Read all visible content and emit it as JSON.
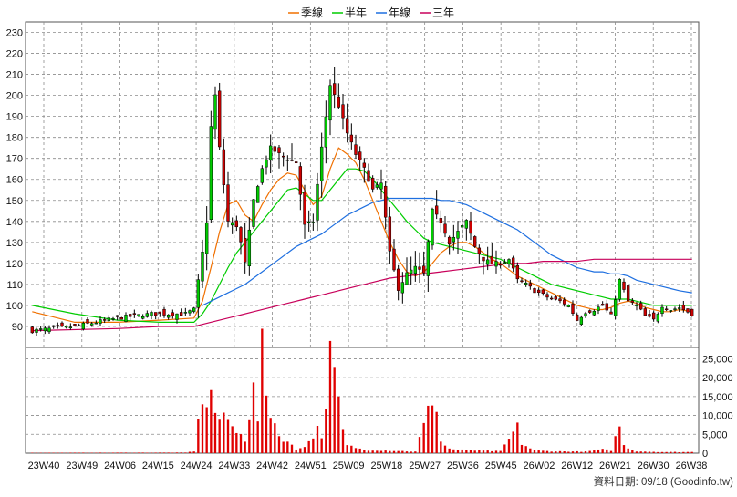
{
  "legend": [
    {
      "name": "季線",
      "color": "#f07000"
    },
    {
      "name": "半年",
      "color": "#00cc00"
    },
    {
      "name": "年線",
      "color": "#1e6fe0"
    },
    {
      "name": "三年",
      "color": "#c8005a"
    }
  ],
  "footer": "資料日期: 09/18  (Goodinfo.tw)",
  "colors": {
    "up": "#00cc00",
    "down": "#cc0000",
    "wick": "#000000",
    "volume": "#e00000",
    "grid": "#8c8c8c"
  },
  "chart_data": {
    "type": "candlestick",
    "x_ticks": [
      "23W40",
      "23W49",
      "24W06",
      "24W15",
      "24W24",
      "24W33",
      "24W42",
      "24W51",
      "25W09",
      "25W18",
      "25W27",
      "25W36",
      "25W45",
      "26W02",
      "26W12",
      "26W21",
      "26W30",
      "26W38"
    ],
    "price_axis": {
      "ticks": [
        90,
        100,
        110,
        120,
        130,
        140,
        150,
        160,
        170,
        180,
        190,
        200,
        210,
        220,
        230
      ],
      "ylim": [
        80,
        235
      ]
    },
    "volume_axis": {
      "ticks": [
        "0",
        "5,000",
        "10,000",
        "15,000",
        "20,000",
        "25,000"
      ],
      "ylim": [
        0,
        28000
      ]
    },
    "weeks": 156,
    "price_waypoints": [
      [
        0,
        88
      ],
      [
        10,
        90
      ],
      [
        20,
        94
      ],
      [
        28,
        96
      ],
      [
        36,
        96
      ],
      [
        38,
        98
      ],
      [
        40,
        125
      ],
      [
        41,
        140
      ],
      [
        42,
        185
      ],
      [
        43,
        200
      ],
      [
        44,
        175
      ],
      [
        46,
        140
      ],
      [
        48,
        138
      ],
      [
        49,
        130
      ],
      [
        50,
        120
      ],
      [
        52,
        150
      ],
      [
        54,
        165
      ],
      [
        56,
        175
      ],
      [
        58,
        172
      ],
      [
        60,
        170
      ],
      [
        62,
        168
      ],
      [
        64,
        138
      ],
      [
        66,
        140
      ],
      [
        68,
        175
      ],
      [
        70,
        205
      ],
      [
        72,
        195
      ],
      [
        74,
        182
      ],
      [
        76,
        172
      ],
      [
        78,
        165
      ],
      [
        80,
        155
      ],
      [
        82,
        158
      ],
      [
        84,
        125
      ],
      [
        86,
        108
      ],
      [
        88,
        115
      ],
      [
        90,
        118
      ],
      [
        92,
        115
      ],
      [
        94,
        145
      ],
      [
        96,
        140
      ],
      [
        98,
        130
      ],
      [
        100,
        135
      ],
      [
        102,
        140
      ],
      [
        104,
        128
      ],
      [
        106,
        122
      ],
      [
        108,
        120
      ],
      [
        110,
        120
      ],
      [
        112,
        122
      ],
      [
        114,
        112
      ],
      [
        116,
        110
      ],
      [
        118,
        107
      ],
      [
        120,
        105
      ],
      [
        122,
        103
      ],
      [
        124,
        102
      ],
      [
        126,
        100
      ],
      [
        128,
        93
      ],
      [
        130,
        97
      ],
      [
        132,
        98
      ],
      [
        134,
        100
      ],
      [
        136,
        95
      ],
      [
        138,
        112
      ],
      [
        140,
        102
      ],
      [
        142,
        100
      ],
      [
        144,
        95
      ],
      [
        146,
        93
      ],
      [
        148,
        100
      ],
      [
        150,
        98
      ],
      [
        152,
        99
      ],
      [
        155,
        96
      ]
    ],
    "volume_waypoints": [
      [
        0,
        100
      ],
      [
        36,
        150
      ],
      [
        38,
        500
      ],
      [
        40,
        15000
      ],
      [
        41,
        13000
      ],
      [
        42,
        15500
      ],
      [
        43,
        11000
      ],
      [
        44,
        9000
      ],
      [
        46,
        9000
      ],
      [
        48,
        5000
      ],
      [
        49,
        6000
      ],
      [
        50,
        3500
      ],
      [
        52,
        16500
      ],
      [
        53,
        9000
      ],
      [
        54,
        27500
      ],
      [
        55,
        15000
      ],
      [
        56,
        11000
      ],
      [
        57,
        8000
      ],
      [
        58,
        4500
      ],
      [
        60,
        3000
      ],
      [
        62,
        1000
      ],
      [
        64,
        2000
      ],
      [
        66,
        4000
      ],
      [
        67,
        8500
      ],
      [
        68,
        3500
      ],
      [
        70,
        25500
      ],
      [
        71,
        21000
      ],
      [
        72,
        13000
      ],
      [
        73,
        6000
      ],
      [
        74,
        2000
      ],
      [
        76,
        1500
      ],
      [
        78,
        800
      ],
      [
        80,
        800
      ],
      [
        86,
        600
      ],
      [
        90,
        400
      ],
      [
        94,
        14500
      ],
      [
        95,
        12000
      ],
      [
        96,
        3000
      ],
      [
        98,
        1200
      ],
      [
        100,
        900
      ],
      [
        104,
        700
      ],
      [
        110,
        500
      ],
      [
        114,
        7000
      ],
      [
        115,
        2500
      ],
      [
        118,
        700
      ],
      [
        122,
        500
      ],
      [
        130,
        400
      ],
      [
        134,
        1000
      ],
      [
        136,
        700
      ],
      [
        138,
        7500
      ],
      [
        139,
        2000
      ],
      [
        142,
        500
      ],
      [
        148,
        300
      ],
      [
        155,
        300
      ]
    ],
    "ma_waypoints": {
      "季線": [
        [
          0,
          97
        ],
        [
          10,
          92
        ],
        [
          20,
          92
        ],
        [
          30,
          93
        ],
        [
          38,
          94
        ],
        [
          40,
          102
        ],
        [
          42,
          118
        ],
        [
          44,
          135
        ],
        [
          46,
          148
        ],
        [
          48,
          150
        ],
        [
          50,
          143
        ],
        [
          52,
          140
        ],
        [
          54,
          148
        ],
        [
          56,
          155
        ],
        [
          58,
          160
        ],
        [
          60,
          163
        ],
        [
          62,
          162
        ],
        [
          64,
          155
        ],
        [
          66,
          148
        ],
        [
          68,
          152
        ],
        [
          70,
          165
        ],
        [
          72,
          175
        ],
        [
          74,
          172
        ],
        [
          76,
          168
        ],
        [
          78,
          160
        ],
        [
          80,
          150
        ],
        [
          82,
          140
        ],
        [
          84,
          130
        ],
        [
          86,
          122
        ],
        [
          88,
          116
        ],
        [
          90,
          114
        ],
        [
          92,
          116
        ],
        [
          94,
          120
        ],
        [
          96,
          125
        ],
        [
          98,
          128
        ],
        [
          100,
          130
        ],
        [
          102,
          130
        ],
        [
          104,
          128
        ],
        [
          106,
          125
        ],
        [
          108,
          122
        ],
        [
          110,
          120
        ],
        [
          112,
          117
        ],
        [
          114,
          114
        ],
        [
          116,
          112
        ],
        [
          118,
          110
        ],
        [
          120,
          108
        ],
        [
          122,
          106
        ],
        [
          124,
          104
        ],
        [
          126,
          102
        ],
        [
          128,
          100
        ],
        [
          130,
          99
        ],
        [
          132,
          98
        ],
        [
          134,
          98
        ],
        [
          136,
          99
        ],
        [
          138,
          101
        ],
        [
          140,
          102
        ],
        [
          142,
          101
        ],
        [
          144,
          99
        ],
        [
          146,
          98
        ],
        [
          148,
          97
        ],
        [
          150,
          97
        ],
        [
          152,
          98
        ],
        [
          155,
          97
        ]
      ],
      "半年": [
        [
          0,
          100
        ],
        [
          10,
          96
        ],
        [
          20,
          93
        ],
        [
          30,
          92
        ],
        [
          38,
          92
        ],
        [
          40,
          96
        ],
        [
          42,
          102
        ],
        [
          44,
          110
        ],
        [
          46,
          118
        ],
        [
          48,
          125
        ],
        [
          50,
          130
        ],
        [
          52,
          135
        ],
        [
          54,
          140
        ],
        [
          56,
          145
        ],
        [
          58,
          150
        ],
        [
          60,
          155
        ],
        [
          62,
          156
        ],
        [
          64,
          153
        ],
        [
          66,
          150
        ],
        [
          68,
          150
        ],
        [
          70,
          155
        ],
        [
          72,
          160
        ],
        [
          74,
          165
        ],
        [
          76,
          165
        ],
        [
          78,
          164
        ],
        [
          80,
          160
        ],
        [
          82,
          155
        ],
        [
          84,
          150
        ],
        [
          86,
          145
        ],
        [
          88,
          140
        ],
        [
          90,
          136
        ],
        [
          92,
          132
        ],
        [
          94,
          130
        ],
        [
          96,
          129
        ],
        [
          98,
          128
        ],
        [
          100,
          127
        ],
        [
          102,
          126
        ],
        [
          104,
          125
        ],
        [
          106,
          124
        ],
        [
          108,
          123
        ],
        [
          110,
          122
        ],
        [
          112,
          120
        ],
        [
          114,
          118
        ],
        [
          116,
          116
        ],
        [
          118,
          114
        ],
        [
          120,
          112
        ],
        [
          122,
          110
        ],
        [
          124,
          109
        ],
        [
          126,
          108
        ],
        [
          128,
          107
        ],
        [
          130,
          106
        ],
        [
          132,
          105
        ],
        [
          134,
          104
        ],
        [
          136,
          103
        ],
        [
          138,
          103
        ],
        [
          140,
          103
        ],
        [
          142,
          102
        ],
        [
          144,
          101
        ],
        [
          146,
          100
        ],
        [
          148,
          100
        ],
        [
          150,
          100
        ],
        [
          152,
          100
        ],
        [
          155,
          100
        ]
      ],
      "年線": [
        [
          40,
          100
        ],
        [
          42,
          102
        ],
        [
          44,
          104
        ],
        [
          46,
          106
        ],
        [
          48,
          108
        ],
        [
          50,
          110
        ],
        [
          52,
          113
        ],
        [
          54,
          116
        ],
        [
          56,
          119
        ],
        [
          58,
          122
        ],
        [
          60,
          125
        ],
        [
          62,
          128
        ],
        [
          64,
          130
        ],
        [
          66,
          132
        ],
        [
          68,
          134
        ],
        [
          70,
          137
        ],
        [
          72,
          140
        ],
        [
          74,
          143
        ],
        [
          76,
          145
        ],
        [
          78,
          147
        ],
        [
          80,
          149
        ],
        [
          82,
          150
        ],
        [
          84,
          151
        ],
        [
          86,
          151
        ],
        [
          88,
          151
        ],
        [
          90,
          151
        ],
        [
          92,
          151
        ],
        [
          94,
          151
        ],
        [
          96,
          150
        ],
        [
          98,
          150
        ],
        [
          100,
          149
        ],
        [
          102,
          148
        ],
        [
          104,
          146
        ],
        [
          106,
          144
        ],
        [
          108,
          142
        ],
        [
          110,
          140
        ],
        [
          112,
          138
        ],
        [
          114,
          136
        ],
        [
          116,
          133
        ],
        [
          118,
          130
        ],
        [
          120,
          127
        ],
        [
          122,
          124
        ],
        [
          124,
          122
        ],
        [
          126,
          120
        ],
        [
          128,
          118
        ],
        [
          130,
          117
        ],
        [
          132,
          116
        ],
        [
          134,
          116
        ],
        [
          136,
          115
        ],
        [
          138,
          115
        ],
        [
          140,
          114
        ],
        [
          142,
          112
        ],
        [
          144,
          111
        ],
        [
          146,
          110
        ],
        [
          148,
          109
        ],
        [
          150,
          108
        ],
        [
          152,
          107
        ],
        [
          155,
          106
        ]
      ],
      "三年": [
        [
          0,
          88
        ],
        [
          20,
          89
        ],
        [
          30,
          90
        ],
        [
          38,
          90
        ],
        [
          40,
          91
        ],
        [
          44,
          93
        ],
        [
          48,
          95
        ],
        [
          52,
          97
        ],
        [
          56,
          99
        ],
        [
          60,
          101
        ],
        [
          64,
          103
        ],
        [
          68,
          105
        ],
        [
          72,
          107
        ],
        [
          76,
          109
        ],
        [
          80,
          111
        ],
        [
          84,
          113
        ],
        [
          88,
          114
        ],
        [
          92,
          115
        ],
        [
          96,
          116
        ],
        [
          100,
          117
        ],
        [
          104,
          118
        ],
        [
          108,
          119
        ],
        [
          112,
          120
        ],
        [
          116,
          120
        ],
        [
          120,
          121
        ],
        [
          124,
          121
        ],
        [
          128,
          121
        ],
        [
          132,
          122
        ],
        [
          136,
          122
        ],
        [
          140,
          122
        ],
        [
          144,
          122
        ],
        [
          148,
          122
        ],
        [
          152,
          122
        ],
        [
          155,
          122
        ]
      ]
    }
  }
}
